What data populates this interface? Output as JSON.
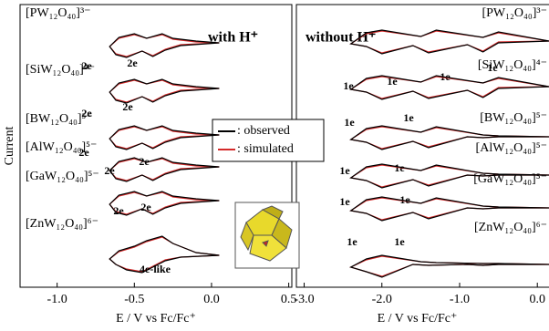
{
  "chart_data": [
    {
      "type": "line",
      "title": "with H⁺",
      "ylabel": "Current",
      "xlabel": "E / V vs Fc/Fc⁺",
      "xlim": [
        -1.24,
        0.52
      ],
      "ylim": [
        0,
        31
      ],
      "xticks": [
        {
          "value": -1,
          "label": "-1.0"
        },
        {
          "value": -0.5,
          "label": "-0.5"
        },
        {
          "value": 0,
          "label": "0.0"
        },
        0.5
      ],
      "legend": [
        {
          "name": ": observed",
          "color": "#000000"
        },
        {
          "name": ": simulated",
          "color": "#d42a2a"
        }
      ],
      "traces": [
        {
          "label": "[PW₁₂O₄₀]³⁻",
          "annotations": [
            "2e",
            "2e"
          ],
          "x": [
            0.05,
            -0.2,
            -0.3,
            -0.38,
            -0.45,
            -0.55,
            -0.62,
            -0.66,
            -0.6,
            -0.5,
            -0.42,
            -0.32,
            -0.25,
            -0.1,
            0.05
          ],
          "observed": [
            26.8,
            26.5,
            26.0,
            25.3,
            25.9,
            25.2,
            25.5,
            26.4,
            27.4,
            27.8,
            27.3,
            27.8,
            27.3,
            27.0,
            26.8
          ],
          "simulated": [
            26.8,
            26.6,
            26.1,
            25.4,
            25.9,
            25.3,
            25.6,
            26.4,
            27.3,
            27.7,
            27.3,
            27.7,
            27.2,
            26.9,
            26.8
          ]
        },
        {
          "label": "[SiW₁₂O₄₀]⁴⁻",
          "annotations": [
            "2e",
            "2e"
          ],
          "x": [
            0.05,
            -0.2,
            -0.3,
            -0.38,
            -0.45,
            -0.55,
            -0.62,
            -0.66,
            -0.6,
            -0.5,
            -0.42,
            -0.32,
            -0.25,
            -0.1,
            0.05
          ],
          "observed": [
            21.8,
            21.5,
            21.0,
            20.3,
            20.9,
            20.2,
            20.5,
            21.4,
            22.4,
            22.8,
            22.3,
            22.8,
            22.3,
            22.0,
            21.8
          ],
          "simulated": [
            21.8,
            21.6,
            21.1,
            20.4,
            20.9,
            20.3,
            20.6,
            21.4,
            22.3,
            22.7,
            22.3,
            22.7,
            22.2,
            21.9,
            21.8
          ]
        },
        {
          "label": "[BW₁₂O₄₀]⁵⁻",
          "annotations": [
            "2e"
          ],
          "x": [
            0.05,
            -0.2,
            -0.3,
            -0.38,
            -0.45,
            -0.55,
            -0.62,
            -0.66,
            -0.6,
            -0.5,
            -0.42,
            -0.32,
            -0.25,
            -0.1,
            0.05
          ],
          "observed": [
            16.7,
            16.4,
            15.9,
            15.2,
            15.8,
            15.1,
            15.4,
            16.3,
            17.3,
            17.7,
            17.2,
            17.7,
            17.2,
            16.9,
            16.7
          ],
          "simulated": [
            16.7,
            16.5,
            16.0,
            15.3,
            15.8,
            15.2,
            15.5,
            16.3,
            17.2,
            17.6,
            17.2,
            17.6,
            17.1,
            16.8,
            16.7
          ]
        },
        {
          "label": "[AlW₁₂O₄₀]⁵⁻",
          "annotations": [
            "2e",
            "2e"
          ],
          "x": [
            0.05,
            -0.2,
            -0.3,
            -0.38,
            -0.45,
            -0.55,
            -0.62,
            -0.66,
            -0.6,
            -0.5,
            -0.42,
            -0.32,
            -0.25,
            -0.1,
            0.05
          ],
          "observed": [
            13.2,
            12.9,
            12.4,
            11.7,
            12.3,
            11.6,
            11.9,
            12.8,
            13.8,
            14.2,
            13.7,
            14.2,
            13.7,
            13.4,
            13.2
          ],
          "simulated": [
            13.2,
            13.0,
            12.5,
            11.8,
            12.3,
            11.7,
            12.0,
            12.8,
            13.7,
            14.1,
            13.7,
            14.1,
            13.6,
            13.3,
            13.2
          ]
        },
        {
          "label": "[GaW₁₂O₄₀]⁵⁻",
          "annotations": [
            "2e",
            "2e"
          ],
          "x": [
            0.05,
            -0.2,
            -0.3,
            -0.38,
            -0.45,
            -0.55,
            -0.62,
            -0.66,
            -0.6,
            -0.5,
            -0.42,
            -0.32,
            -0.25,
            -0.1,
            0.05
          ],
          "observed": [
            9.5,
            9.2,
            8.7,
            8.0,
            8.6,
            7.9,
            8.2,
            9.1,
            10.1,
            10.5,
            10.0,
            10.5,
            10.0,
            9.7,
            9.5
          ],
          "simulated": [
            9.5,
            9.3,
            8.8,
            8.1,
            8.6,
            8.0,
            8.3,
            9.1,
            10.0,
            10.4,
            10.0,
            10.4,
            9.9,
            9.6,
            9.5
          ]
        },
        {
          "label": "[ZnW₁₂O₄₀]⁶⁻",
          "annotations": [
            "4e-like"
          ],
          "x": [
            0.05,
            -0.2,
            -0.3,
            -0.38,
            -0.45,
            -0.55,
            -0.62,
            -0.66,
            -0.6,
            -0.5,
            -0.42,
            -0.32,
            -0.25,
            -0.1,
            0.05
          ],
          "observed": [
            3.5,
            3.3,
            2.9,
            2.2,
            1.6,
            1.9,
            2.5,
            3.1,
            4.0,
            4.5,
            5.1,
            5.6,
            4.8,
            3.8,
            3.5
          ],
          "simulated": [
            3.5,
            3.3,
            3.0,
            2.3,
            1.7,
            2.0,
            2.5,
            3.1,
            3.9,
            4.4,
            5.0,
            5.5,
            4.8,
            3.8,
            3.5
          ]
        }
      ]
    },
    {
      "type": "line",
      "title": "without H⁺",
      "xlabel": "E / V vs Fc/Fc⁺",
      "xlim": [
        -3.1,
        0.15
      ],
      "ylim": [
        0,
        31
      ],
      "xticks": [
        {
          "value": -3,
          "label": "-3.0"
        },
        {
          "value": -2,
          "label": "-2.0"
        },
        {
          "value": -1,
          "label": "-1.0"
        },
        {
          "value": 0,
          "label": "0.0"
        }
      ],
      "traces": [
        {
          "label": "[PW₁₂O₄₀]³⁻",
          "annotations": [
            "1e",
            "1e",
            "1e",
            "1e"
          ],
          "x": [
            0.15,
            -0.5,
            -0.7,
            -0.9,
            -1.4,
            -1.6,
            -2.0,
            -2.2,
            -2.4,
            -2.2,
            -2.0,
            -1.5,
            -1.3,
            -0.7,
            -0.5,
            0.15
          ],
          "observed": [
            27,
            26.8,
            25.8,
            26.6,
            25.7,
            26.5,
            25.6,
            26.4,
            26.7,
            27.9,
            28.2,
            27.5,
            28.2,
            27.4,
            28.0,
            27
          ],
          "simulated": [
            27,
            26.9,
            25.9,
            26.6,
            25.8,
            26.5,
            25.7,
            26.4,
            26.7,
            27.8,
            28.1,
            27.5,
            28.1,
            27.4,
            27.9,
            27
          ]
        },
        {
          "label": "[SiW₁₂O₄₀]⁴⁻",
          "annotations": [
            "1e",
            "1e"
          ],
          "x": [
            0.15,
            -0.5,
            -0.7,
            -0.9,
            -1.4,
            -1.6,
            -2.0,
            -2.2,
            -2.4,
            -2.2,
            -2.0,
            -1.5,
            -1.3,
            -0.7,
            -0.5,
            0.15
          ],
          "observed": [
            22,
            21.8,
            20.8,
            21.6,
            20.7,
            21.5,
            20.6,
            21.4,
            21.7,
            22.9,
            23.2,
            22.5,
            23.2,
            22.4,
            23.0,
            22
          ],
          "simulated": [
            22,
            21.9,
            20.9,
            21.6,
            20.8,
            21.5,
            20.7,
            21.4,
            21.7,
            22.8,
            23.1,
            22.5,
            23.1,
            22.4,
            22.9,
            22
          ]
        },
        {
          "label": "[BW₁₂O₄₀]⁵⁻",
          "annotations": [
            "1e",
            "1e"
          ],
          "x": [
            0.15,
            -0.5,
            -0.7,
            -0.9,
            -1.4,
            -1.6,
            -2.0,
            -2.2,
            -2.4,
            -2.2,
            -2.0,
            -1.5,
            -1.3,
            -0.7,
            -0.5,
            0.15
          ],
          "observed": [
            16.5,
            16.5,
            16.4,
            16.5,
            15.3,
            16.0,
            15.1,
            15.9,
            16.2,
            17.4,
            17.7,
            17.0,
            17.6,
            16.7,
            16.6,
            16.5
          ],
          "simulated": [
            16.5,
            16.5,
            16.4,
            16.5,
            15.4,
            16.0,
            15.2,
            15.9,
            16.2,
            17.3,
            17.6,
            17.0,
            17.5,
            16.7,
            16.6,
            16.5
          ]
        },
        {
          "label": "[AlW₁₂O₄₀]⁵⁻",
          "annotations": [
            "1e",
            "1e"
          ],
          "x": [
            0.15,
            -0.5,
            -0.7,
            -0.9,
            -1.4,
            -1.6,
            -2.0,
            -2.2,
            -2.4,
            -2.2,
            -2.0,
            -1.5,
            -1.3,
            -0.7,
            -0.5,
            0.15
          ],
          "observed": [
            12.3,
            12.3,
            12.2,
            12.3,
            11.1,
            11.8,
            10.9,
            11.7,
            12.0,
            13.2,
            13.5,
            12.8,
            13.4,
            12.5,
            12.4,
            12.3
          ],
          "simulated": [
            12.3,
            12.3,
            12.2,
            12.3,
            11.2,
            11.8,
            11.0,
            11.7,
            12.0,
            13.1,
            13.4,
            12.8,
            13.3,
            12.5,
            12.4,
            12.3
          ]
        },
        {
          "label": "[GaW₁₂O₄₀]⁵⁻",
          "annotations": [
            "1e",
            "1e"
          ],
          "x": [
            0.15,
            -0.5,
            -0.7,
            -0.9,
            -1.4,
            -1.6,
            -2.0,
            -2.2,
            -2.4,
            -2.2,
            -2.0,
            -1.5,
            -1.3,
            -0.7,
            -0.5,
            0.15
          ],
          "observed": [
            8.7,
            8.7,
            8.6,
            8.7,
            7.5,
            8.2,
            7.3,
            8.1,
            8.4,
            9.6,
            9.9,
            9.2,
            9.8,
            8.9,
            8.8,
            8.7
          ],
          "simulated": [
            8.7,
            8.7,
            8.6,
            8.7,
            7.6,
            8.2,
            7.4,
            8.1,
            8.4,
            9.5,
            9.8,
            9.2,
            9.7,
            8.9,
            8.8,
            8.7
          ]
        },
        {
          "label": "[ZnW₁₂O₄₀]⁶⁻",
          "x": [
            0.15,
            -0.5,
            -0.7,
            -0.9,
            -1.4,
            -1.6,
            -2.0,
            -2.2,
            -2.4,
            -2.2,
            -2.0,
            -1.5,
            -1.3,
            -0.7,
            -0.5,
            0.15
          ],
          "observed": [
            2.5,
            2.5,
            2.4,
            2.5,
            2.4,
            2.5,
            1.1,
            1.7,
            2.2,
            3.1,
            3.5,
            2.8,
            2.7,
            2.6,
            2.6,
            2.5
          ],
          "simulated": [
            2.5,
            2.5,
            2.4,
            2.5,
            2.4,
            2.5,
            1.2,
            1.7,
            2.2,
            3.0,
            3.4,
            2.8,
            2.7,
            2.6,
            2.6,
            2.5
          ]
        }
      ]
    }
  ]
}
